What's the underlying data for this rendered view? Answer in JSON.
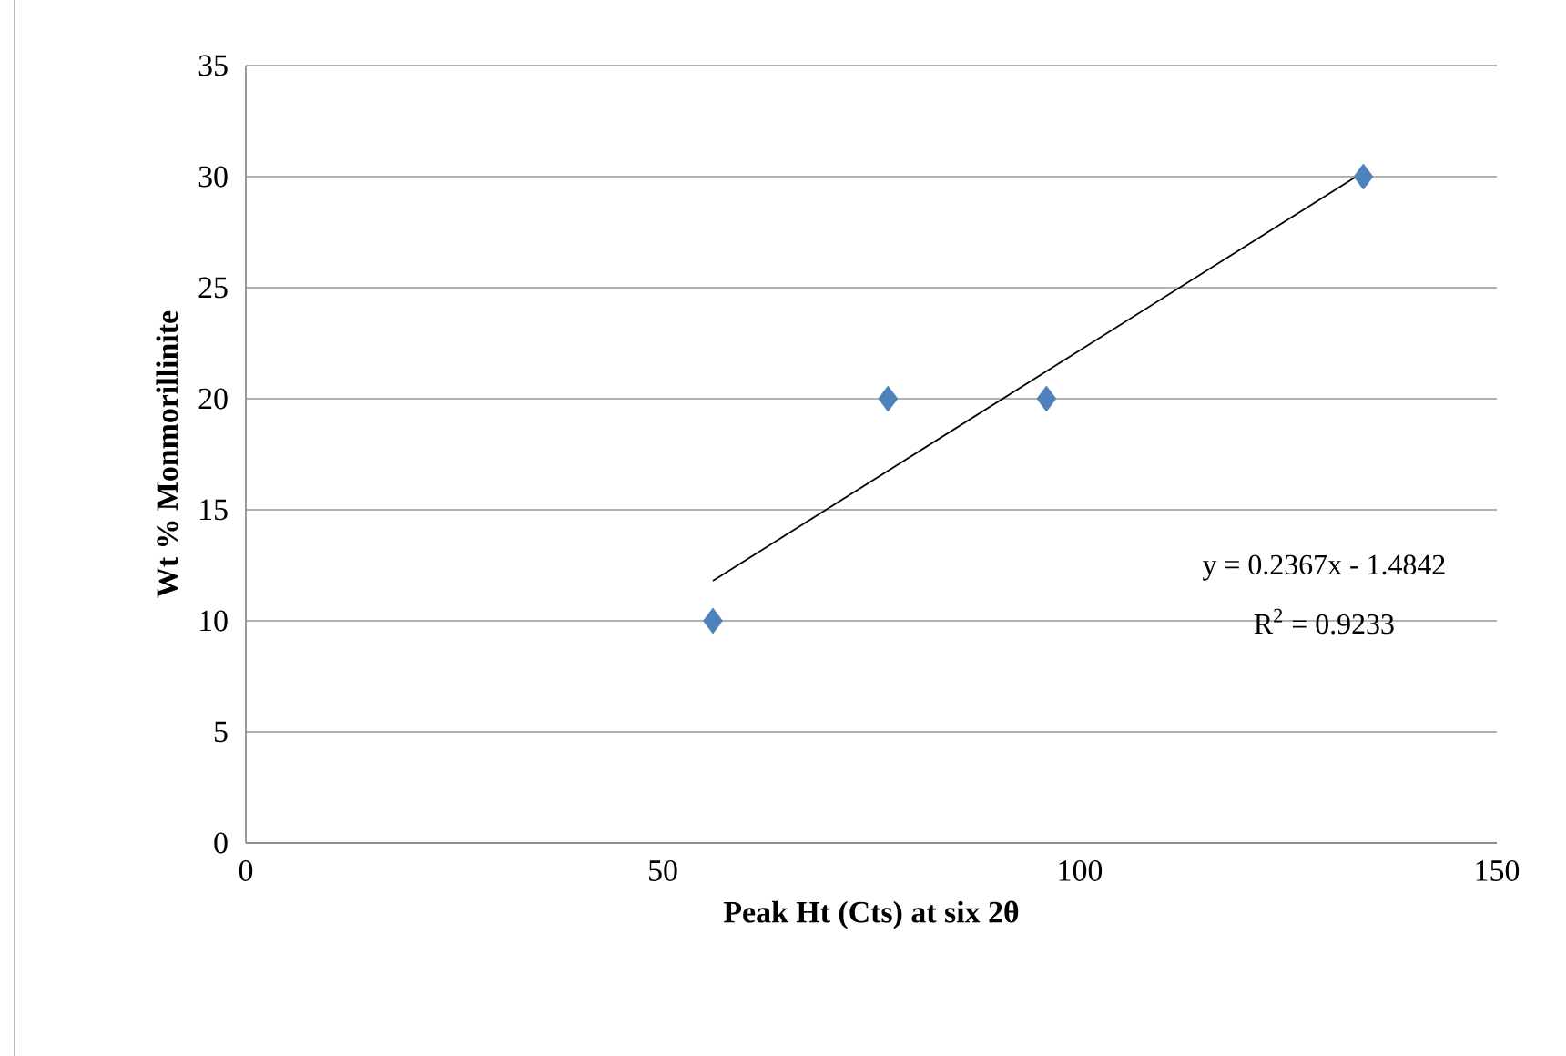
{
  "chart_data": {
    "type": "scatter",
    "xlabel": "Peak Ht (Cts) at six 2θ",
    "ylabel": "Wt % Monmorillinite",
    "series": [
      {
        "color": "#4f81bd",
        "marker": "diamond",
        "x": [
          56,
          77,
          96,
          134
        ],
        "values": [
          10,
          20,
          20,
          30
        ]
      },
      {
        "type": "line",
        "marker": "none",
        "color": "#000000",
        "x": [
          56,
          134
        ],
        "values": [
          11.8,
          30.2
        ]
      }
    ],
    "annotations": [
      "y = 0.2367x - 1.4842",
      "R$^{2}$ = 0.9233"
    ],
    "xlim": [
      0,
      150
    ],
    "xticks": [
      0,
      50,
      100,
      150
    ],
    "ylim": [
      0,
      35
    ],
    "yticks": [
      0,
      5,
      10,
      15,
      20,
      25,
      30,
      35
    ],
    "grid": "y"
  }
}
